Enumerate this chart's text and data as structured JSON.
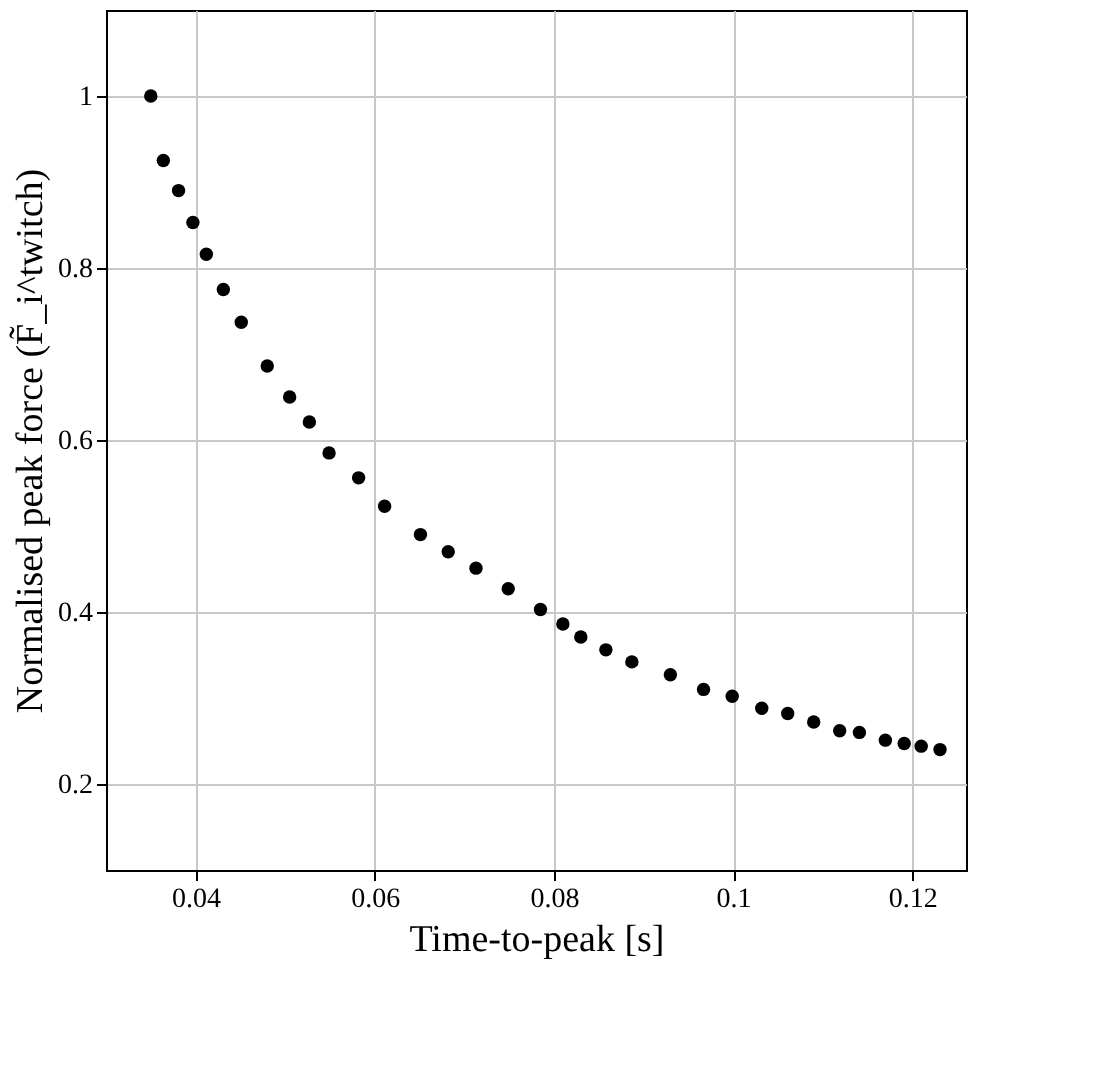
{
  "chart_data": {
    "type": "scatter",
    "xlabel": "Time-to-peak [s]",
    "ylabel": "Normalised peak force (F̃_i^twitch)",
    "x": [
      0.035,
      0.0364,
      0.0381,
      0.0397,
      0.0412,
      0.0431,
      0.0451,
      0.048,
      0.0505,
      0.0527,
      0.0549,
      0.0582,
      0.0611,
      0.0651,
      0.0682,
      0.0713,
      0.0749,
      0.0785,
      0.081,
      0.083,
      0.0858,
      0.0887,
      0.093,
      0.0967,
      0.0999,
      0.1032,
      0.1061,
      0.109,
      0.1119,
      0.1141,
      0.117,
      0.1191,
      0.121,
      0.1231
    ],
    "series": [
      {
        "color": "#000000",
        "values": [
          1.0,
          0.925,
          0.89,
          0.853,
          0.816,
          0.775,
          0.737,
          0.686,
          0.65,
          0.621,
          0.585,
          0.556,
          0.523,
          0.49,
          0.47,
          0.451,
          0.427,
          0.403,
          0.386,
          0.371,
          0.356,
          0.342,
          0.327,
          0.31,
          0.302,
          0.288,
          0.282,
          0.272,
          0.262,
          0.26,
          0.251,
          0.247,
          0.244,
          0.24
        ]
      }
    ],
    "xlim": [
      0.03,
      0.126
    ],
    "ylim": [
      0.1,
      1.1
    ],
    "xticks": [
      0.04,
      0.06,
      0.08,
      0.1,
      0.12
    ],
    "yticks": [
      0.2,
      0.4,
      0.6,
      0.8,
      1
    ],
    "grid": true,
    "marker": "circle"
  }
}
